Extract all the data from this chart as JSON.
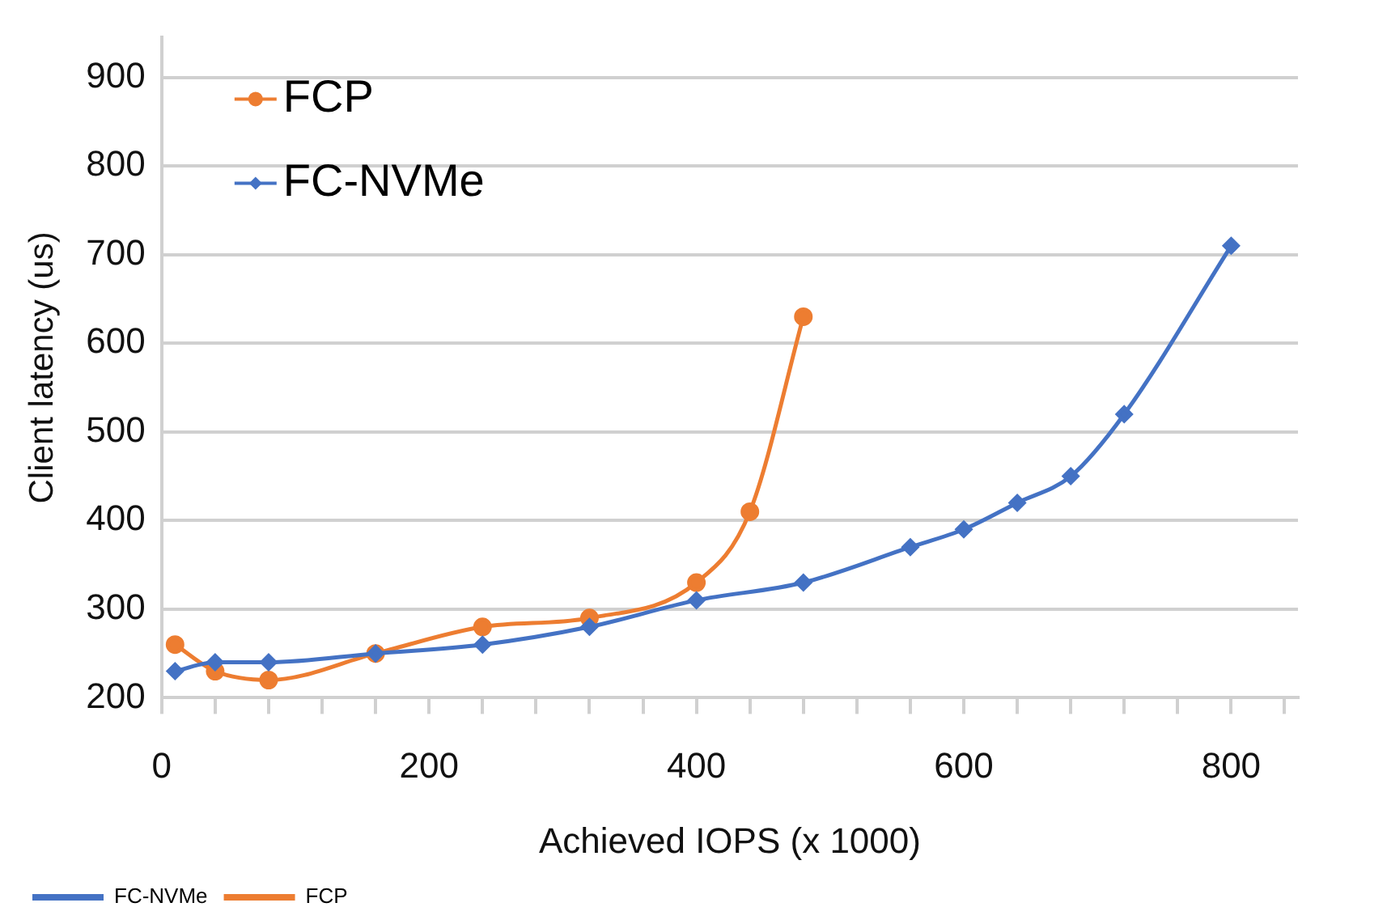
{
  "chart_data": {
    "type": "line",
    "xlabel": "Achieved IOPS (x 1000)",
    "ylabel": "Client latency (us)",
    "xlim": [
      0,
      850
    ],
    "ylim": [
      200,
      945
    ],
    "xticks": [
      0,
      {
        "value": 40,
        "label": null
      },
      {
        "value": 80,
        "label": null
      },
      {
        "value": 120,
        "label": null
      },
      {
        "value": 160,
        "label": null
      },
      200,
      {
        "value": 240,
        "label": null
      },
      {
        "value": 280,
        "label": null
      },
      {
        "value": 320,
        "label": null
      },
      {
        "value": 360,
        "label": null
      },
      400,
      {
        "value": 440,
        "label": null
      },
      {
        "value": 480,
        "label": null
      },
      {
        "value": 520,
        "label": null
      },
      {
        "value": 560,
        "label": null
      },
      600,
      {
        "value": 640,
        "label": null
      },
      {
        "value": 680,
        "label": null
      },
      {
        "value": 720,
        "label": null
      },
      {
        "value": 760,
        "label": null
      },
      800,
      {
        "value": 840,
        "label": null
      }
    ],
    "yticks": [
      200,
      300,
      400,
      500,
      600,
      700,
      800,
      900
    ],
    "grid": "y",
    "legend": "top left",
    "series": [
      {
        "name": "FCP",
        "color": "#ed7d31",
        "marker": "circle",
        "x": [
          10,
          40,
          80,
          160,
          240,
          320,
          400,
          440,
          480
        ],
        "values": [
          260,
          230,
          220,
          250,
          280,
          290,
          330,
          410,
          630
        ]
      },
      {
        "name": "FC-NVMe",
        "color": "#4472c4",
        "marker": "diamond",
        "x": [
          10,
          40,
          80,
          160,
          240,
          320,
          400,
          480,
          560,
          600,
          640,
          680,
          720,
          800
        ],
        "values": [
          230,
          240,
          240,
          250,
          260,
          280,
          310,
          330,
          370,
          390,
          420,
          450,
          520,
          710
        ]
      }
    ]
  }
}
